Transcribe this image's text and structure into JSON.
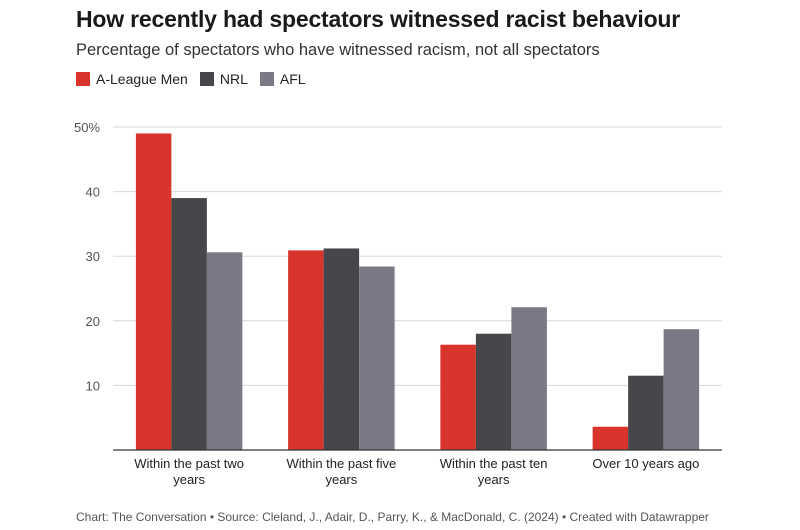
{
  "title": "How recently had spectators witnessed racist behaviour",
  "subtitle": "Percentage of spectators who have witnessed racism, not all spectators",
  "footer": "Chart: The Conversation • Source: Cleland, J., Adair, D., Parry, K., & MacDonald, C. (2024) • Created with Datawrapper",
  "chart_data": {
    "type": "bar",
    "categories": [
      [
        "Within the past two",
        "years"
      ],
      [
        "Within the past five",
        "years"
      ],
      [
        "Within the past ten",
        "years"
      ],
      [
        "Over 10 years ago"
      ]
    ],
    "series": [
      {
        "name": "A-League Men",
        "color": "#d8342c",
        "values": [
          49,
          30.9,
          16.3,
          3.6
        ]
      },
      {
        "name": "NRL",
        "color": "#47464b",
        "values": [
          39,
          31.2,
          18,
          11.5
        ]
      },
      {
        "name": "AFL",
        "color": "#7a7a86",
        "values": [
          30.6,
          28.4,
          22.1,
          18.7
        ]
      }
    ],
    "yticks": [
      "",
      "10",
      "20",
      "30",
      "40",
      "50%"
    ],
    "ylim": [
      0,
      50
    ],
    "grid": true,
    "legend_position": "top-left"
  }
}
